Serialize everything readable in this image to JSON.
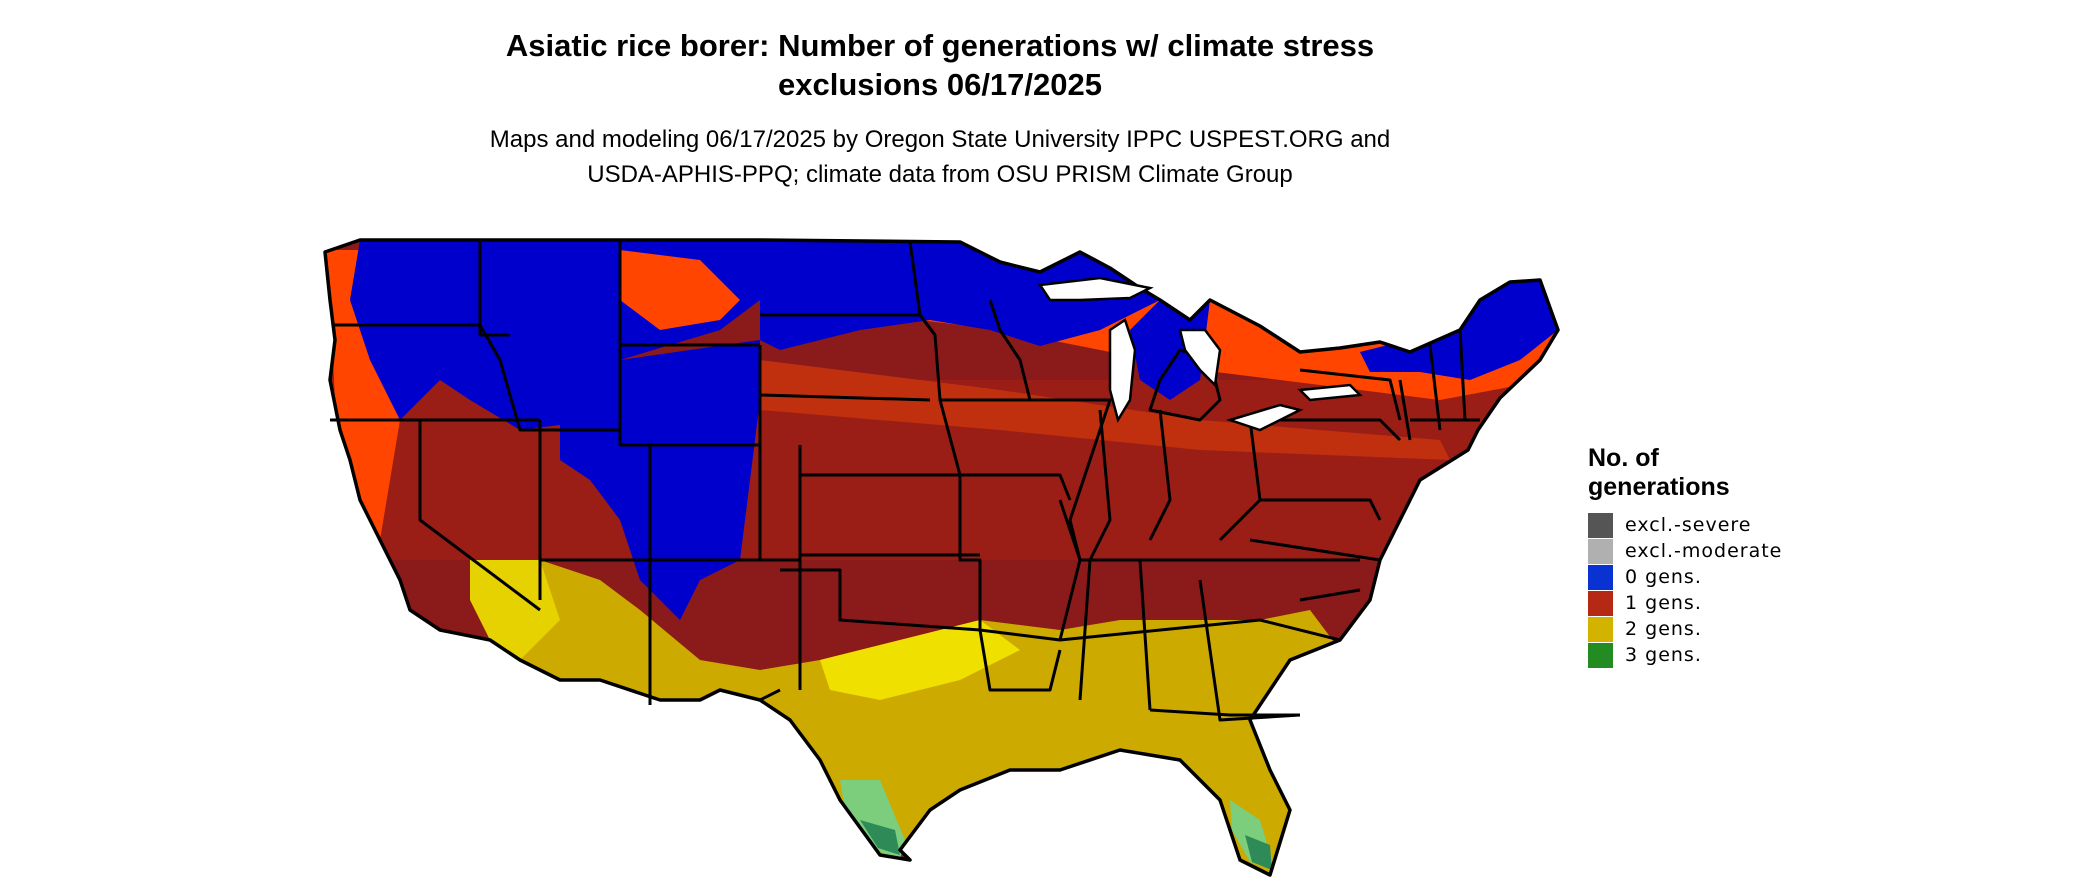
{
  "title_line1": "Asiatic rice borer: Number of generations w/ climate stress",
  "title_line2": "exclusions 06/17/2025",
  "subtitle_line1": "Maps and modeling 06/17/2025 by Oregon State University IPPC USPEST.ORG and",
  "subtitle_line2": "USDA-APHIS-PPQ; climate data from OSU PRISM Climate Group",
  "legend": {
    "title_line1": "No. of",
    "title_line2": "generations",
    "items": [
      {
        "label": "excl.-severe",
        "color": "#555555"
      },
      {
        "label": "excl.-moderate",
        "color": "#b0b0b0"
      },
      {
        "label": "0 gens.",
        "color": "#0a32d2"
      },
      {
        "label": "1 gens.",
        "color": "#b42814"
      },
      {
        "label": "2 gens.",
        "color": "#d2b400"
      },
      {
        "label": "3 gens.",
        "color": "#228b22"
      }
    ]
  },
  "map_colors": {
    "zero_gens": "#0000cc",
    "one_gen_hot": "#8b1a1a",
    "one_gen_mid": "#c0300f",
    "one_gen_cool": "#ff4500",
    "two_gens": "#ccaa00",
    "two_gens_bright": "#f0e000",
    "three_gens": "#2e8b57",
    "three_gens_light": "#7ccd7c",
    "borders": "#000000"
  }
}
